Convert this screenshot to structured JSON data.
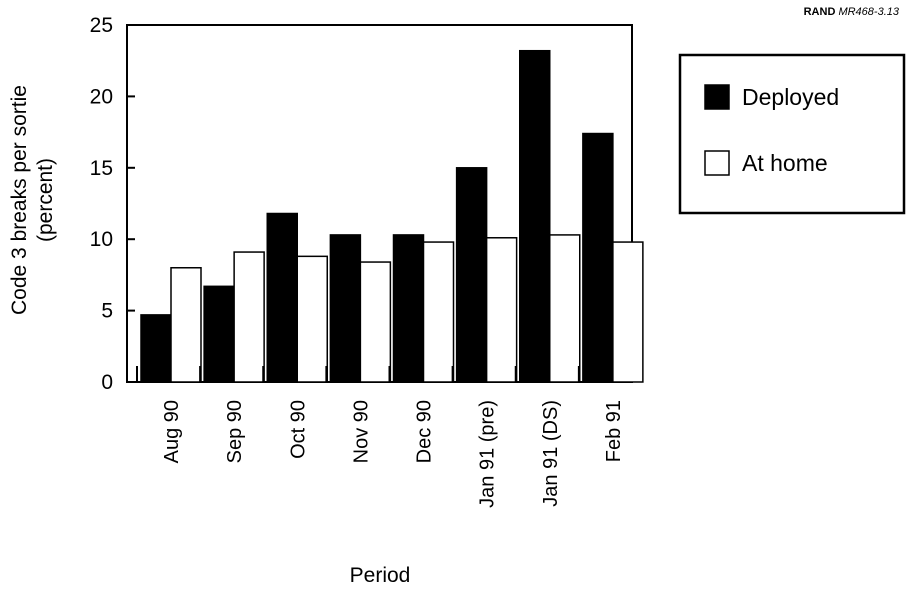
{
  "figure_id": {
    "org": "RAND",
    "number": "MR468-3.13"
  },
  "chart_data": {
    "type": "bar",
    "title": "",
    "xlabel": "Period",
    "ylabel": [
      "Code 3 breaks per sortie",
      "(percent)"
    ],
    "ylim": [
      0,
      25
    ],
    "yticks": [
      0,
      5,
      10,
      15,
      20,
      25
    ],
    "grid": false,
    "legend_position": "top-right",
    "categories": [
      "Aug 90",
      "Sep 90",
      "Oct 90",
      "Nov 90",
      "Dec 90",
      "Jan 91 (pre)",
      "Jan 91 (DS)",
      "Feb 91"
    ],
    "series": [
      {
        "name": "Deployed",
        "color": "#000000",
        "values": [
          4.7,
          6.7,
          11.8,
          10.3,
          10.3,
          15.0,
          23.2,
          17.4
        ]
      },
      {
        "name": "At home",
        "color": "#ffffff",
        "values": [
          8.0,
          9.1,
          8.8,
          8.4,
          9.8,
          10.1,
          10.3,
          9.8
        ]
      }
    ]
  }
}
